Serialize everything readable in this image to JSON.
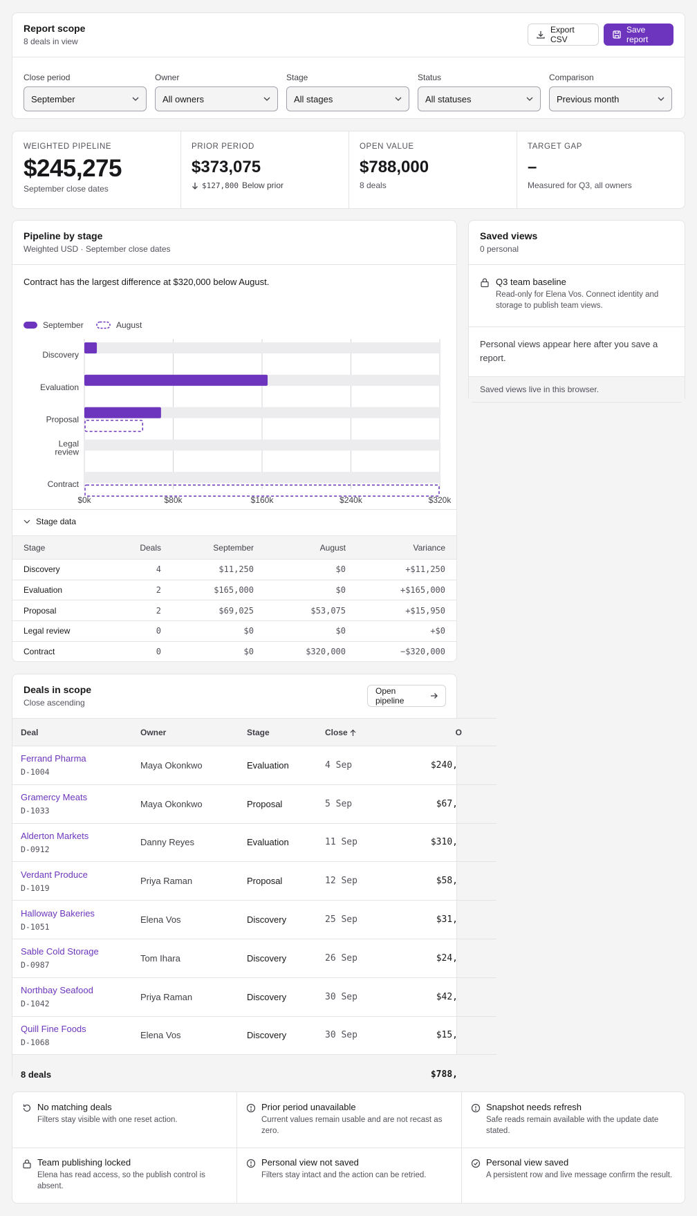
{
  "scope": {
    "title": "Report scope",
    "subtitle": "8 deals in view",
    "export_label": "Export CSV",
    "save_label": "Save report",
    "filters": [
      {
        "label": "Close period",
        "value": "September"
      },
      {
        "label": "Owner",
        "value": "All owners"
      },
      {
        "label": "Stage",
        "value": "All stages"
      },
      {
        "label": "Status",
        "value": "All statuses"
      },
      {
        "label": "Comparison",
        "value": "Previous month"
      }
    ]
  },
  "kpis": {
    "weighted": {
      "label": "WEIGHTED PIPELINE",
      "value": "$245,275",
      "note": "September close dates"
    },
    "prior": {
      "label": "PRIOR PERIOD",
      "value": "$373,075",
      "delta": "$127,800",
      "delta_note": "Below prior"
    },
    "open": {
      "label": "OPEN VALUE",
      "value": "$788,000",
      "note": "8 deals"
    },
    "target": {
      "label": "TARGET GAP",
      "value": "–",
      "note": "Measured for Q3, all owners"
    }
  },
  "chart_panel": {
    "title": "Pipeline by stage",
    "subtitle": "Weighted USD · September close dates",
    "summary": "Contract has the largest difference at $320,000 below August.",
    "stage_data_label": "Stage data"
  },
  "chart_data": {
    "type": "bar",
    "orientation": "horizontal",
    "categories": [
      "Discovery",
      "Evaluation",
      "Proposal",
      "Legal review",
      "Contract"
    ],
    "series": [
      {
        "name": "September",
        "values": [
          11250,
          165000,
          69025,
          0,
          0
        ],
        "color": "#6d35bd",
        "style": "solid"
      },
      {
        "name": "August",
        "values": [
          0,
          0,
          53075,
          0,
          320000
        ],
        "color": "#6d35bd",
        "style": "dashed"
      }
    ],
    "xlim": [
      0,
      320000
    ],
    "ticks": [
      "$0k",
      "$80k",
      "$160k",
      "$240k",
      "$320k"
    ],
    "grid": true,
    "legend": "top-left"
  },
  "stage_table": {
    "headers": [
      "Stage",
      "Deals",
      "September",
      "August",
      "Variance"
    ],
    "rows": [
      [
        "Discovery",
        "4",
        "$11,250",
        "$0",
        "+$11,250"
      ],
      [
        "Evaluation",
        "2",
        "$165,000",
        "$0",
        "+$165,000"
      ],
      [
        "Proposal",
        "2",
        "$69,025",
        "$53,075",
        "+$15,950"
      ],
      [
        "Legal review",
        "0",
        "$0",
        "$0",
        "+$0"
      ],
      [
        "Contract",
        "0",
        "$0",
        "$320,000",
        "−$320,000"
      ]
    ]
  },
  "saved_views": {
    "title": "Saved views",
    "subtitle": "0 personal",
    "baseline_title": "Q3 team baseline",
    "baseline_desc": "Read-only for Elena Vos. Connect identity and storage to publish team views.",
    "empty_text": "Personal views appear here after you save a report.",
    "footer": "Saved views live in this browser."
  },
  "deals": {
    "title": "Deals in scope",
    "subtitle": "Close ascending",
    "open_label": "Open pipeline",
    "headers": [
      "Deal",
      "Owner",
      "Stage",
      "Close",
      "O"
    ],
    "rows": [
      {
        "name": "Ferrand Pharma",
        "id": "D-1004",
        "owner": "Maya Okonkwo",
        "stage": "Evaluation",
        "close": "4 Sep",
        "value": "$240,"
      },
      {
        "name": "Gramercy Meats",
        "id": "D-1033",
        "owner": "Maya Okonkwo",
        "stage": "Proposal",
        "close": "5 Sep",
        "value": "$67,"
      },
      {
        "name": "Alderton Markets",
        "id": "D-0912",
        "owner": "Danny Reyes",
        "stage": "Evaluation",
        "close": "11 Sep",
        "value": "$310,"
      },
      {
        "name": "Verdant Produce",
        "id": "D-1019",
        "owner": "Priya Raman",
        "stage": "Proposal",
        "close": "12 Sep",
        "value": "$58,"
      },
      {
        "name": "Halloway Bakeries",
        "id": "D-1051",
        "owner": "Elena Vos",
        "stage": "Discovery",
        "close": "25 Sep",
        "value": "$31,"
      },
      {
        "name": "Sable Cold Storage",
        "id": "D-0987",
        "owner": "Tom Ihara",
        "stage": "Discovery",
        "close": "26 Sep",
        "value": "$24,"
      },
      {
        "name": "Northbay Seafood",
        "id": "D-1042",
        "owner": "Priya Raman",
        "stage": "Discovery",
        "close": "30 Sep",
        "value": "$42,"
      },
      {
        "name": "Quill Fine Foods",
        "id": "D-1068",
        "owner": "Elena Vos",
        "stage": "Discovery",
        "close": "30 Sep",
        "value": "$15,"
      }
    ],
    "footer_label": "8 deals",
    "footer_value": "$788,"
  },
  "states": [
    {
      "title": "No matching deals",
      "desc": "Filters stay visible with one reset action.",
      "icon": "reset-icon"
    },
    {
      "title": "Prior period unavailable",
      "desc": "Current values remain usable and are not recast as zero.",
      "icon": "info-icon"
    },
    {
      "title": "Snapshot needs refresh",
      "desc": "Safe reads remain available with the update date stated.",
      "icon": "info-icon"
    },
    {
      "title": "Team publishing locked",
      "desc": "Elena has read access, so the publish control is absent.",
      "icon": "lock-icon"
    },
    {
      "title": "Personal view not saved",
      "desc": "Filters stay intact and the action can be retried.",
      "icon": "info-icon"
    },
    {
      "title": "Personal view saved",
      "desc": "A persistent row and live message confirm the result.",
      "icon": "check-circle-icon"
    }
  ]
}
